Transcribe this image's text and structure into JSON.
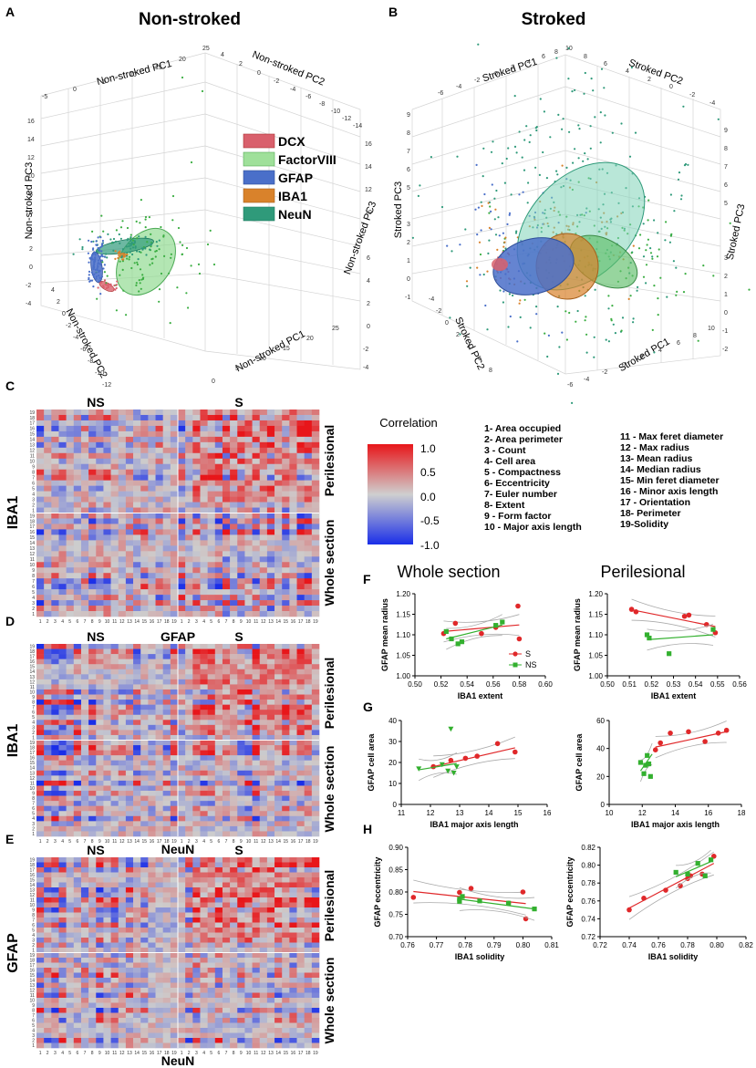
{
  "panel_labels": {
    "a": "A",
    "b": "B",
    "c": "C",
    "d": "D",
    "e": "E",
    "f": "F",
    "g": "G",
    "h": "H"
  },
  "panel_a": {
    "title": "Non-stroked",
    "axis_pc1": "Non-stroked PC1",
    "axis_pc2": "Non-stroked PC2",
    "axis_pc3": "Non-stroked PC3",
    "pc1_ticks": [
      "-5",
      "0",
      "5",
      "10",
      "15",
      "20",
      "25"
    ],
    "pc2_ticks": [
      "6",
      "4",
      "2",
      "0",
      "-2",
      "-4",
      "-6",
      "-8",
      "-10",
      "-12",
      "-14"
    ],
    "pc3_ticks": [
      "16",
      "14",
      "12",
      "10",
      "8",
      "6",
      "4",
      "2",
      "0",
      "-2",
      "-4"
    ],
    "bottom_pc2_ticks": [
      "4",
      "2",
      "0",
      "-2",
      "-4",
      "-6",
      "-8",
      "-10",
      "-12"
    ],
    "bottom_pc1_ticks": [
      "0",
      "5",
      "10",
      "15",
      "20",
      "25"
    ],
    "legend": [
      {
        "label": "DCX",
        "color": "#d9606c"
      },
      {
        "label": "FactorVIII",
        "color": "#9fe09a"
      },
      {
        "label": "GFAP",
        "color": "#4a6fc9"
      },
      {
        "label": "IBA1",
        "color": "#d9822b"
      },
      {
        "label": "NeuN",
        "color": "#2f9a7a"
      }
    ]
  },
  "panel_b": {
    "title": "Stroked",
    "axis_pc1": "Stroked PC1",
    "axis_pc2": "Stroked PC2",
    "axis_pc3": "Stroked PC3",
    "pc1_ticks": [
      "-6",
      "-4",
      "-2",
      "0",
      "2",
      "4",
      "6",
      "8",
      "10"
    ],
    "pc2_ticks": [
      "8",
      "6",
      "4",
      "2",
      "0",
      "-2",
      "-4"
    ],
    "pc3_ticks": [
      "9",
      "8",
      "7",
      "6",
      "5",
      "4",
      "3",
      "2",
      "1",
      "0",
      "-1",
      "-2"
    ],
    "bottom_pc2_ticks": [
      "-4",
      "-2",
      "0",
      "2",
      "4",
      "6",
      "8"
    ],
    "bottom_pc1_ticks": [
      "-6",
      "-4",
      "-2",
      "0",
      "2",
      "4",
      "6",
      "8",
      "10"
    ]
  },
  "heatmaps": {
    "legend_title": "Correlation",
    "legend_ticks": [
      "1.0",
      "0.5",
      "0.0",
      "-0.5",
      "-1.0"
    ],
    "col_ns": "NS",
    "col_s": "S",
    "row_perilesional": "Perilesional",
    "row_whole": "Whole section",
    "c": {
      "ylabel": "IBA1",
      "xlabel": "GFAP"
    },
    "d": {
      "ylabel": "IBA1",
      "xlabel": "NeuN"
    },
    "e": {
      "ylabel": "GFAP",
      "xlabel": "NeuN"
    },
    "row_ticks": [
      "19",
      "18",
      "17",
      "16",
      "15",
      "14",
      "13",
      "12",
      "11",
      "10",
      "9",
      "8",
      "7",
      "6",
      "5",
      "4",
      "3",
      "2",
      "1"
    ],
    "col_ticks": [
      "1",
      "2",
      "3",
      "4",
      "5",
      "6",
      "7",
      "8",
      "9",
      "10",
      "11",
      "12",
      "13",
      "14",
      "15",
      "16",
      "17",
      "18",
      "19"
    ]
  },
  "feature_list_1": [
    "1- Area occupied",
    "2- Area perimeter",
    "3 - Count",
    "4- Cell area",
    "5 - Compactness",
    "6- Eccentricity",
    "7- Euler number",
    "8- Extent",
    "9 - Form factor",
    "10 - Major axis length"
  ],
  "feature_list_2": [
    "11 - Max feret diameter",
    "12 - Max radius",
    "13- Mean radius",
    "14- Median radius",
    "15- Min feret diameter",
    "16 - Minor axis length",
    "17 - Orientation",
    "18- Perimeter",
    "19-Solidity"
  ],
  "panel_f_titles": {
    "left": "Whole section",
    "right": "Perilesional"
  },
  "scatter_legend": {
    "s": "S",
    "ns": "NS"
  },
  "chart_data": [
    {
      "id": "F-left",
      "type": "scatter",
      "xlabel": "IBA1 extent",
      "ylabel": "GFAP mean radius",
      "xlim": [
        0.5,
        0.6
      ],
      "ylim": [
        1.0,
        1.2
      ],
      "xticks": [
        "0.50",
        "0.52",
        "0.54",
        "0.56",
        "0.58",
        "0.60"
      ],
      "yticks": [
        "1.00",
        "1.05",
        "1.10",
        "1.15",
        "1.20"
      ],
      "series": [
        {
          "name": "S",
          "color": "#e0282a",
          "marker": "circle",
          "x": [
            0.522,
            0.531,
            0.551,
            0.562,
            0.579,
            0.58
          ],
          "y": [
            1.103,
            1.128,
            1.103,
            1.118,
            1.17,
            1.09
          ],
          "fit": [
            [
              0.522,
              1.108
            ],
            [
              0.58,
              1.124
            ]
          ]
        },
        {
          "name": "NS",
          "color": "#33b02f",
          "marker": "square",
          "x": [
            0.524,
            0.528,
            0.533,
            0.536,
            0.562,
            0.567
          ],
          "y": [
            1.108,
            1.09,
            1.078,
            1.083,
            1.123,
            1.131
          ],
          "fit": [
            [
              0.524,
              1.09
            ],
            [
              0.567,
              1.124
            ]
          ]
        }
      ]
    },
    {
      "id": "F-right",
      "type": "scatter",
      "xlabel": "IBA1 extent",
      "ylabel": "GFAP mean radius",
      "xlim": [
        0.5,
        0.56
      ],
      "ylim": [
        1.0,
        1.2
      ],
      "xticks": [
        "0.50",
        "0.51",
        "0.52",
        "0.53",
        "0.54",
        "0.55",
        "0.56"
      ],
      "yticks": [
        "1.00",
        "1.05",
        "1.10",
        "1.15",
        "1.20"
      ],
      "series": [
        {
          "name": "S",
          "color": "#e0282a",
          "marker": "circle",
          "x": [
            0.511,
            0.513,
            0.535,
            0.537,
            0.545,
            0.549
          ],
          "y": [
            1.162,
            1.156,
            1.145,
            1.148,
            1.125,
            1.105
          ],
          "fit": [
            [
              0.511,
              1.161
            ],
            [
              0.549,
              1.12
            ]
          ]
        },
        {
          "name": "NS",
          "color": "#33b02f",
          "marker": "square",
          "x": [
            0.518,
            0.519,
            0.528,
            0.548
          ],
          "y": [
            1.1,
            1.092,
            1.054,
            1.113
          ],
          "fit": [
            [
              0.518,
              1.088
            ],
            [
              0.548,
              1.1
            ]
          ]
        }
      ]
    },
    {
      "id": "G-left",
      "type": "scatter",
      "xlabel": "IBA1 major axis length",
      "ylabel": "GFAP cell area",
      "xlim": [
        11,
        16
      ],
      "ylim": [
        0,
        40
      ],
      "xticks": [
        "11",
        "12",
        "13",
        "14",
        "15",
        "16"
      ],
      "yticks": [
        "0",
        "10",
        "20",
        "30",
        "40"
      ],
      "series": [
        {
          "name": "S",
          "color": "#e0282a",
          "marker": "circle",
          "x": [
            12.1,
            12.7,
            13.2,
            13.6,
            14.3,
            14.9
          ],
          "y": [
            18,
            21,
            22,
            23,
            29,
            25
          ],
          "fit": [
            [
              12.1,
              18
            ],
            [
              14.9,
              27
            ]
          ]
        },
        {
          "name": "NS",
          "color": "#33b02f",
          "marker": "triangle",
          "x": [
            11.6,
            12.4,
            12.6,
            12.8,
            12.9,
            12.7
          ],
          "y": [
            17,
            19,
            16,
            15,
            18,
            36
          ],
          "fit": [
            [
              11.6,
              16.5
            ],
            [
              12.9,
              19.5
            ]
          ]
        }
      ]
    },
    {
      "id": "G-right",
      "type": "scatter",
      "xlabel": "IBA1 major axis length",
      "ylabel": "GFAP cell area",
      "xlim": [
        10,
        18
      ],
      "ylim": [
        0,
        60
      ],
      "xticks": [
        "10",
        "12",
        "14",
        "16",
        "18"
      ],
      "yticks": [
        "0",
        "20",
        "40",
        "60"
      ],
      "series": [
        {
          "name": "S",
          "color": "#e0282a",
          "marker": "circle",
          "x": [
            12.8,
            13.1,
            13.7,
            14.8,
            15.8,
            16.6,
            17.1
          ],
          "y": [
            39,
            44,
            51,
            52,
            45,
            51,
            53
          ],
          "fit": [
            [
              12.8,
              41
            ],
            [
              17.1,
              52
            ]
          ]
        },
        {
          "name": "NS",
          "color": "#33b02f",
          "marker": "square",
          "x": [
            11.9,
            12.1,
            12.2,
            12.3,
            12.4,
            12.5
          ],
          "y": [
            30,
            22,
            28,
            35,
            29,
            20
          ],
          "fit": [
            [
              11.9,
              24
            ],
            [
              12.6,
              36
            ]
          ]
        }
      ]
    },
    {
      "id": "H-left",
      "type": "scatter",
      "xlabel": "IBA1 solidity",
      "ylabel": "GFAP eccentricity",
      "xlim": [
        0.76,
        0.81
      ],
      "ylim": [
        0.7,
        0.9
      ],
      "xticks": [
        "0.76",
        "0.77",
        "0.78",
        "0.79",
        "0.80",
        "0.81"
      ],
      "yticks": [
        "0.70",
        "0.75",
        "0.80",
        "0.85",
        "0.90"
      ],
      "series": [
        {
          "name": "S",
          "color": "#e0282a",
          "marker": "circle",
          "x": [
            0.762,
            0.778,
            0.782,
            0.795,
            0.8,
            0.801
          ],
          "y": [
            0.788,
            0.799,
            0.808,
            0.775,
            0.8,
            0.74
          ],
          "fit": [
            [
              0.762,
              0.801
            ],
            [
              0.801,
              0.774
            ]
          ]
        },
        {
          "name": "NS",
          "color": "#33b02f",
          "marker": "square",
          "x": [
            0.778,
            0.778,
            0.779,
            0.785,
            0.795,
            0.804
          ],
          "y": [
            0.784,
            0.779,
            0.79,
            0.78,
            0.775,
            0.762
          ],
          "fit": [
            [
              0.778,
              0.784
            ],
            [
              0.804,
              0.762
            ]
          ]
        }
      ]
    },
    {
      "id": "H-right",
      "type": "scatter",
      "xlabel": "IBA1 solidity",
      "ylabel": "GFAP eccentricity",
      "xlim": [
        0.72,
        0.82
      ],
      "ylim": [
        0.72,
        0.82
      ],
      "xticks": [
        "0.72",
        "0.74",
        "0.76",
        "0.78",
        "0.80",
        "0.82"
      ],
      "yticks": [
        "0.72",
        "0.74",
        "0.76",
        "0.78",
        "0.80",
        "0.82"
      ],
      "series": [
        {
          "name": "S",
          "color": "#e0282a",
          "marker": "circle",
          "x": [
            0.74,
            0.75,
            0.765,
            0.775,
            0.78,
            0.782,
            0.79,
            0.798
          ],
          "y": [
            0.75,
            0.763,
            0.772,
            0.777,
            0.785,
            0.788,
            0.79,
            0.81
          ],
          "fit": [
            [
              0.74,
              0.752
            ],
            [
              0.798,
              0.802
            ]
          ]
        },
        {
          "name": "NS",
          "color": "#33b02f",
          "marker": "square",
          "x": [
            0.772,
            0.78,
            0.787,
            0.792,
            0.796
          ],
          "y": [
            0.792,
            0.79,
            0.802,
            0.788,
            0.806
          ],
          "fit": [
            [
              0.772,
              0.787
            ],
            [
              0.796,
              0.804
            ]
          ]
        }
      ]
    }
  ]
}
